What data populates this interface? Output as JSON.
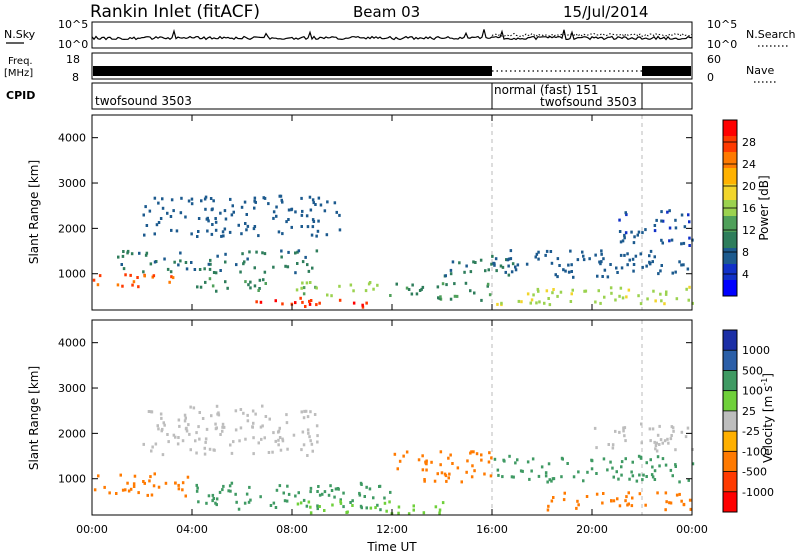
{
  "header": {
    "station": "Rankin Inlet (fitACF)",
    "beam": "Beam 03",
    "date": "15/Jul/2014"
  },
  "status_panels": {
    "nsky": {
      "label": "N.Sky",
      "y_ticks": [
        "10^5",
        "10^0"
      ]
    },
    "nsearch": {
      "label": "N.Search",
      "y_ticks": [
        "10^5",
        "10^0"
      ]
    },
    "freq": {
      "label_line1": "Freq.",
      "label_line2": "[MHz]",
      "y_ticks": [
        "18",
        "8"
      ]
    },
    "nave": {
      "label": "Nave",
      "y_ticks": [
        "60",
        "0"
      ]
    },
    "cpid": {
      "label": "CPID",
      "segments": [
        {
          "name": "twofsound 3503",
          "start_h": 0,
          "end_h": 16
        },
        {
          "name": "normal (fast) 151",
          "start_h": 16,
          "end_h": 22
        },
        {
          "name": "twofsound 3503",
          "start_h": 16,
          "end_h": 24
        }
      ]
    }
  },
  "chart_data": [
    {
      "type": "heatmap",
      "title": "",
      "quantity": "Power",
      "xlabel": "",
      "ylabel": "Slant Range [km]",
      "xlim": [
        0,
        24
      ],
      "ylim": [
        200,
        4500
      ],
      "y_ticks": [
        1000,
        2000,
        3000,
        4000
      ],
      "colorbar": {
        "label": "Power [dB]",
        "ticks": [
          "28",
          "24",
          "20",
          "16",
          "12",
          "8",
          "4"
        ],
        "colors": [
          "#ff0000",
          "#ff3a00",
          "#ff7a00",
          "#ffb200",
          "#f2d52b",
          "#9bd24f",
          "#4fa05a",
          "#2e7d5b",
          "#1c5a8e",
          "#1030c8",
          "#0000ff"
        ]
      },
      "regions": [
        {
          "t0": 0,
          "t1": 3.5,
          "r0": 700,
          "r1": 1000,
          "level": 26
        },
        {
          "t0": 3.5,
          "t1": 7,
          "r0": 600,
          "r1": 900,
          "level": 10
        },
        {
          "t0": 6.5,
          "t1": 11,
          "r0": 250,
          "r1": 500,
          "level": 28
        },
        {
          "t0": 8,
          "t1": 12,
          "r0": 500,
          "r1": 800,
          "level": 14
        },
        {
          "t0": 1,
          "t1": 9,
          "r0": 1000,
          "r1": 1500,
          "level": 8
        },
        {
          "t0": 2,
          "t1": 10,
          "r0": 1800,
          "r1": 2700,
          "level": 6
        },
        {
          "t0": 12,
          "t1": 16,
          "r0": 400,
          "r1": 800,
          "level": 10
        },
        {
          "t0": 14,
          "t1": 17,
          "r0": 900,
          "r1": 1400,
          "level": 8
        },
        {
          "t0": 16,
          "t1": 24,
          "r0": 900,
          "r1": 1500,
          "level": 6
        },
        {
          "t0": 16,
          "t1": 24,
          "r0": 300,
          "r1": 700,
          "level": 16
        },
        {
          "t0": 21,
          "t1": 24,
          "r0": 1600,
          "r1": 2400,
          "level": 5
        }
      ]
    },
    {
      "type": "heatmap",
      "title": "",
      "quantity": "Velocity",
      "xlabel": "Time UT",
      "ylabel": "Slant Range [km]",
      "xlim": [
        0,
        24
      ],
      "ylim": [
        200,
        4500
      ],
      "x_ticks": [
        "00:00",
        "04:00",
        "08:00",
        "12:00",
        "16:00",
        "20:00",
        "00:00"
      ],
      "y_ticks": [
        1000,
        2000,
        3000,
        4000
      ],
      "colorbar": {
        "label": "Velocity [m s^-1]",
        "ticks": [
          "1000",
          "500",
          "100",
          "25",
          "-25",
          "-100",
          "-500",
          "-1000"
        ],
        "colors": [
          "#1c2fa6",
          "#2b5fa8",
          "#3f9a63",
          "#6fd03a",
          "#bdbdbd",
          "#ffb000",
          "#ff7a00",
          "#ff3a00",
          "#ff0000"
        ]
      },
      "regions": [
        {
          "t0": 0,
          "t1": 4,
          "r0": 600,
          "r1": 1100,
          "level": -300
        },
        {
          "t0": 2,
          "t1": 9,
          "r0": 1500,
          "r1": 2600,
          "level": 0
        },
        {
          "t0": 4,
          "t1": 12,
          "r0": 300,
          "r1": 900,
          "level": 200
        },
        {
          "t0": 8,
          "t1": 14,
          "r0": 200,
          "r1": 500,
          "level": 60
        },
        {
          "t0": 12,
          "t1": 16,
          "r0": 900,
          "r1": 1600,
          "level": -200
        },
        {
          "t0": 16,
          "t1": 24,
          "r0": 900,
          "r1": 1500,
          "level": 300
        },
        {
          "t0": 18,
          "t1": 24,
          "r0": 300,
          "r1": 700,
          "level": -400
        },
        {
          "t0": 20,
          "t1": 24,
          "r0": 1600,
          "r1": 2200,
          "level": 0
        }
      ]
    }
  ]
}
